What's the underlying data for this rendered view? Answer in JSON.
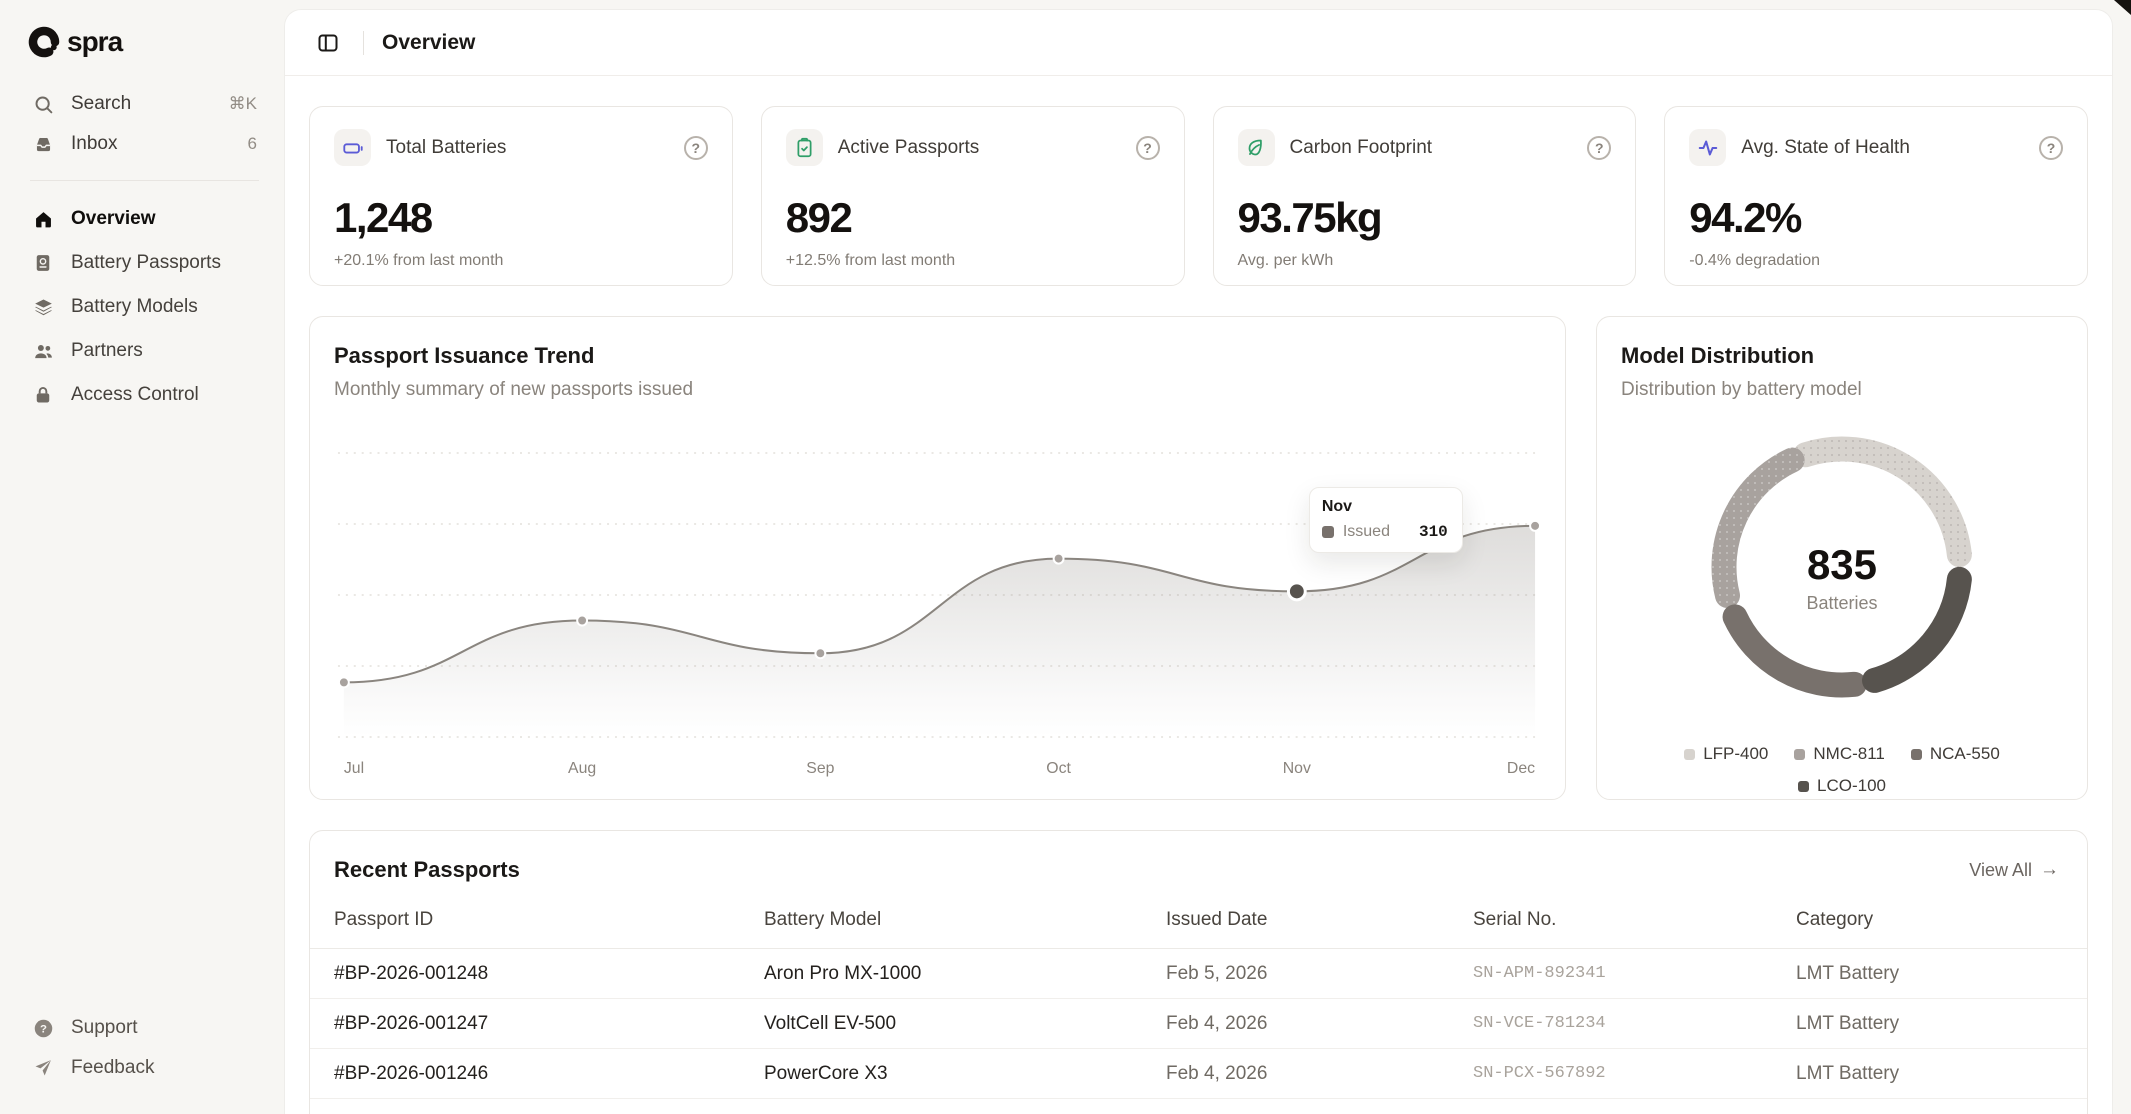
{
  "brand": {
    "wordmark": "spra"
  },
  "sidebar": {
    "search": {
      "label": "Search",
      "shortcut": "⌘K"
    },
    "inbox": {
      "label": "Inbox",
      "badge": "6"
    },
    "nav": [
      {
        "label": "Overview",
        "icon": "home-icon",
        "active": true
      },
      {
        "label": "Battery Passports",
        "icon": "passport-icon",
        "active": false
      },
      {
        "label": "Battery Models",
        "icon": "layers-icon",
        "active": false
      },
      {
        "label": "Partners",
        "icon": "users-icon",
        "active": false
      },
      {
        "label": "Access Control",
        "icon": "lock-icon",
        "active": false
      }
    ],
    "footer": [
      {
        "label": "Support",
        "icon": "help-circle-icon"
      },
      {
        "label": "Feedback",
        "icon": "send-icon"
      }
    ]
  },
  "header": {
    "title": "Overview"
  },
  "stats": [
    {
      "title": "Total Batteries",
      "value": "1,248",
      "note": "+20.1% from last month",
      "icon": "battery-icon",
      "icon_color": "#5b5bd6"
    },
    {
      "title": "Active Passports",
      "value": "892",
      "note": "+12.5% from last month",
      "icon": "clipboard-check-icon",
      "icon_color": "#2f9e68"
    },
    {
      "title": "Carbon Footprint",
      "value": "93.75kg",
      "note": "Avg. per kWh",
      "icon": "leaf-icon",
      "icon_color": "#2f9e68"
    },
    {
      "title": "Avg. State of Health",
      "value": "94.2%",
      "note": "-0.4% degradation",
      "icon": "activity-icon",
      "icon_color": "#5b5bd6"
    }
  ],
  "trend": {
    "title": "Passport Issuance Trend",
    "subtitle": "Monthly summary of new passports issued",
    "tooltip": {
      "month": "Nov",
      "series": "Issued",
      "value": "310"
    },
    "chart_data": {
      "type": "area",
      "x": [
        "Jul",
        "Aug",
        "Sep",
        "Oct",
        "Nov",
        "Dec"
      ],
      "series": [
        {
          "name": "Issued",
          "values": [
            185,
            270,
            225,
            355,
            310,
            400
          ]
        }
      ],
      "active_index": 4,
      "active_value_label": "310",
      "ylim": [
        110,
        500
      ],
      "grid": "horizontal-dotted",
      "gridlines": 5,
      "line_color": "#8a857f",
      "area_color": "#8a857f",
      "point_color": "#a8a29e",
      "active_point_color": "#57534e"
    }
  },
  "distribution": {
    "title": "Model Distribution",
    "subtitle": "Distribution by battery model",
    "center_value": "835",
    "center_label": "Batteries",
    "chart_data": {
      "type": "pie",
      "donut": true,
      "total": 835,
      "legend_position": "bottom",
      "segments": [
        {
          "label": "LFP-400",
          "value": 265,
          "color": "#d7d3ce",
          "start": 342,
          "end": 444,
          "dotted": true
        },
        {
          "label": "NMC-811",
          "value": 205,
          "color": "#a8a29e",
          "start": 256,
          "end": 335,
          "dotted": true
        },
        {
          "label": "NCA-550",
          "value": 190,
          "color": "#78716c",
          "start": 174,
          "end": 245,
          "dotted": false
        },
        {
          "label": "LCO-100",
          "value": 175,
          "color": "#57534e",
          "start": 96,
          "end": 164,
          "dotted": false
        }
      ]
    }
  },
  "recent": {
    "title": "Recent Passports",
    "view_all": "View All",
    "view_all_arrow": "→",
    "columns": [
      "Passport ID",
      "Battery Model",
      "Issued Date",
      "Serial No.",
      "Category"
    ],
    "rows": [
      {
        "id": "#BP-2026-001248",
        "model": "Aron Pro MX-1000",
        "date": "Feb 5, 2026",
        "serial": "SN-APM-892341",
        "category": "LMT Battery"
      },
      {
        "id": "#BP-2026-001247",
        "model": "VoltCell EV-500",
        "date": "Feb 4, 2026",
        "serial": "SN-VCE-781234",
        "category": "LMT Battery"
      },
      {
        "id": "#BP-2026-001246",
        "model": "PowerCore X3",
        "date": "Feb 4, 2026",
        "serial": "SN-PCX-567892",
        "category": "LMT Battery"
      }
    ]
  }
}
